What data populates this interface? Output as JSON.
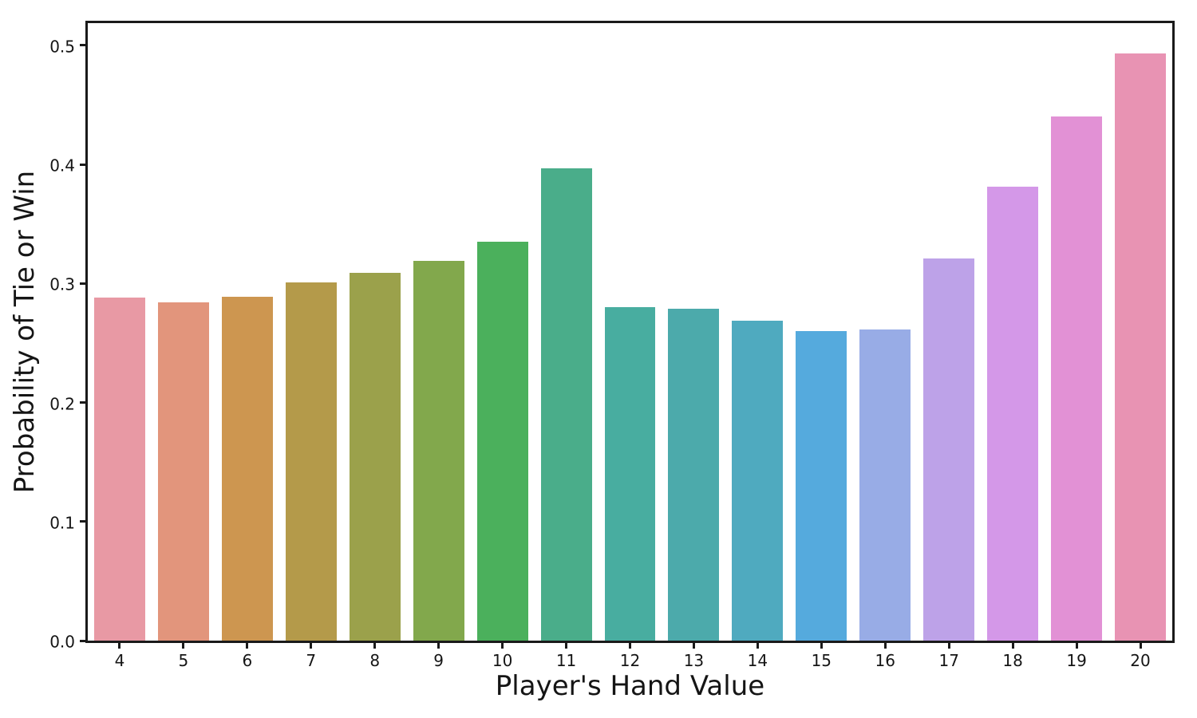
{
  "figure": {
    "background": "#ffffff",
    "plot_background": "#ffffff",
    "spine_color": "#1a1a1a",
    "text_color": "#151515"
  },
  "chart_data": {
    "type": "bar",
    "title": "",
    "xlabel": "Player's Hand Value",
    "ylabel": "Probability of Tie or Win",
    "categories": [
      "4",
      "5",
      "6",
      "7",
      "8",
      "9",
      "10",
      "11",
      "12",
      "13",
      "14",
      "15",
      "16",
      "17",
      "18",
      "19",
      "20"
    ],
    "values": [
      0.288,
      0.284,
      0.289,
      0.301,
      0.309,
      0.319,
      0.335,
      0.397,
      0.28,
      0.279,
      0.269,
      0.26,
      0.261,
      0.321,
      0.381,
      0.44,
      0.493
    ],
    "bar_colors": [
      "#e899a4",
      "#e2957c",
      "#cd9650",
      "#b49a4a",
      "#9ba14b",
      "#82a84c",
      "#4bb05c",
      "#4aad8a",
      "#48ada0",
      "#4caaab",
      "#4faabf",
      "#55aadd",
      "#98ace6",
      "#bda2e8",
      "#d498e8",
      "#e291d5",
      "#e893b3"
    ],
    "y_ticks": [
      "0.0",
      "0.1",
      "0.2",
      "0.3",
      "0.4",
      "0.5"
    ],
    "ylim": [
      0,
      0.5186
    ],
    "bar_width_fraction": 0.8,
    "grid": false,
    "legend": null
  }
}
